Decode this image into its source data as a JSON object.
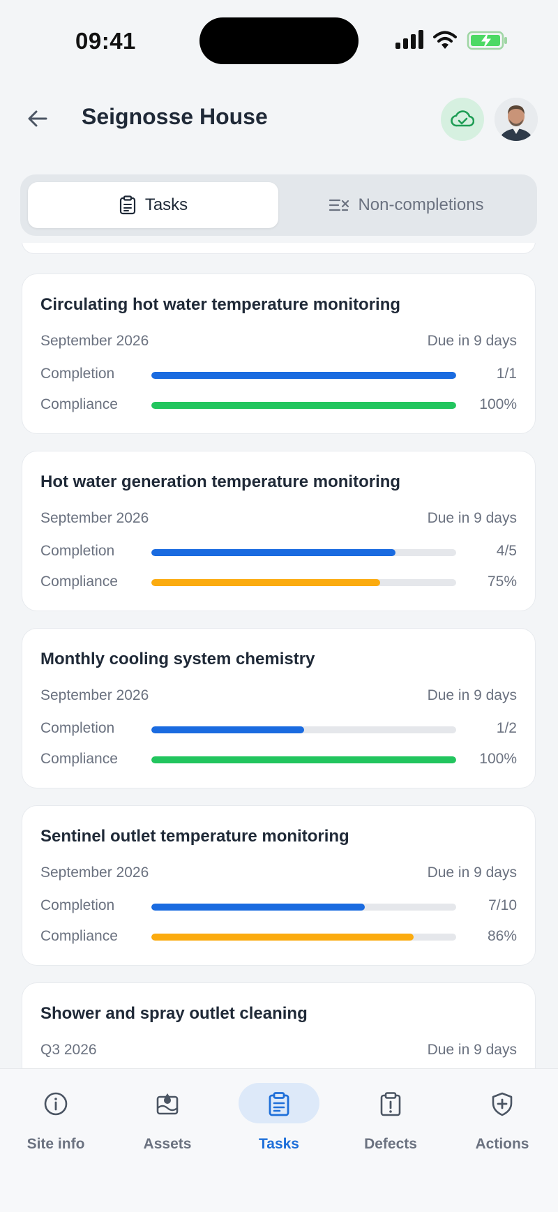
{
  "status_bar": {
    "time": "09:41"
  },
  "header": {
    "title": "Seignosse House"
  },
  "segmented": {
    "tabs": [
      {
        "label": "Tasks",
        "icon": "clipboard-icon",
        "active": true
      },
      {
        "label": "Non-completions",
        "icon": "list-x-icon",
        "active": false
      }
    ]
  },
  "colors": {
    "blue": "#1a6be0",
    "green": "#22c55e",
    "amber": "#fbab0f",
    "track": "#e5e7eb"
  },
  "tasks": [
    {
      "title": "Circulating hot water temperature monitoring",
      "period": "September 2026",
      "due": "Due in 9 days",
      "completion_label": "Completion",
      "completion_value": "1/1",
      "completion_fraction": 1.0,
      "compliance_label": "Compliance",
      "compliance_value": "100%",
      "compliance_fraction": 1.0,
      "compliance_color": "#22c55e"
    },
    {
      "title": "Hot water generation temperature monitoring",
      "period": "September 2026",
      "due": "Due in 9 days",
      "completion_label": "Completion",
      "completion_value": "4/5",
      "completion_fraction": 0.8,
      "compliance_label": "Compliance",
      "compliance_value": "75%",
      "compliance_fraction": 0.75,
      "compliance_color": "#fbab0f"
    },
    {
      "title": "Monthly cooling system chemistry",
      "period": "September 2026",
      "due": "Due in 9 days",
      "completion_label": "Completion",
      "completion_value": "1/2",
      "completion_fraction": 0.5,
      "compliance_label": "Compliance",
      "compliance_value": "100%",
      "compliance_fraction": 1.0,
      "compliance_color": "#22c55e"
    },
    {
      "title": "Sentinel outlet temperature monitoring",
      "period": "September 2026",
      "due": "Due in 9 days",
      "completion_label": "Completion",
      "completion_value": "7/10",
      "completion_fraction": 0.7,
      "compliance_label": "Compliance",
      "compliance_value": "86%",
      "compliance_fraction": 0.86,
      "compliance_color": "#fbab0f"
    },
    {
      "title": "Shower and spray outlet cleaning",
      "period": "Q3 2026",
      "due": "Due in 9 days"
    }
  ],
  "bottom_nav": {
    "items": [
      {
        "label": "Site info",
        "icon": "info-icon",
        "active": false
      },
      {
        "label": "Assets",
        "icon": "assets-icon",
        "active": false
      },
      {
        "label": "Tasks",
        "icon": "clipboard-icon",
        "active": true
      },
      {
        "label": "Defects",
        "icon": "alert-clipboard-icon",
        "active": false
      },
      {
        "label": "Actions",
        "icon": "shield-plus-icon",
        "active": false
      }
    ]
  }
}
